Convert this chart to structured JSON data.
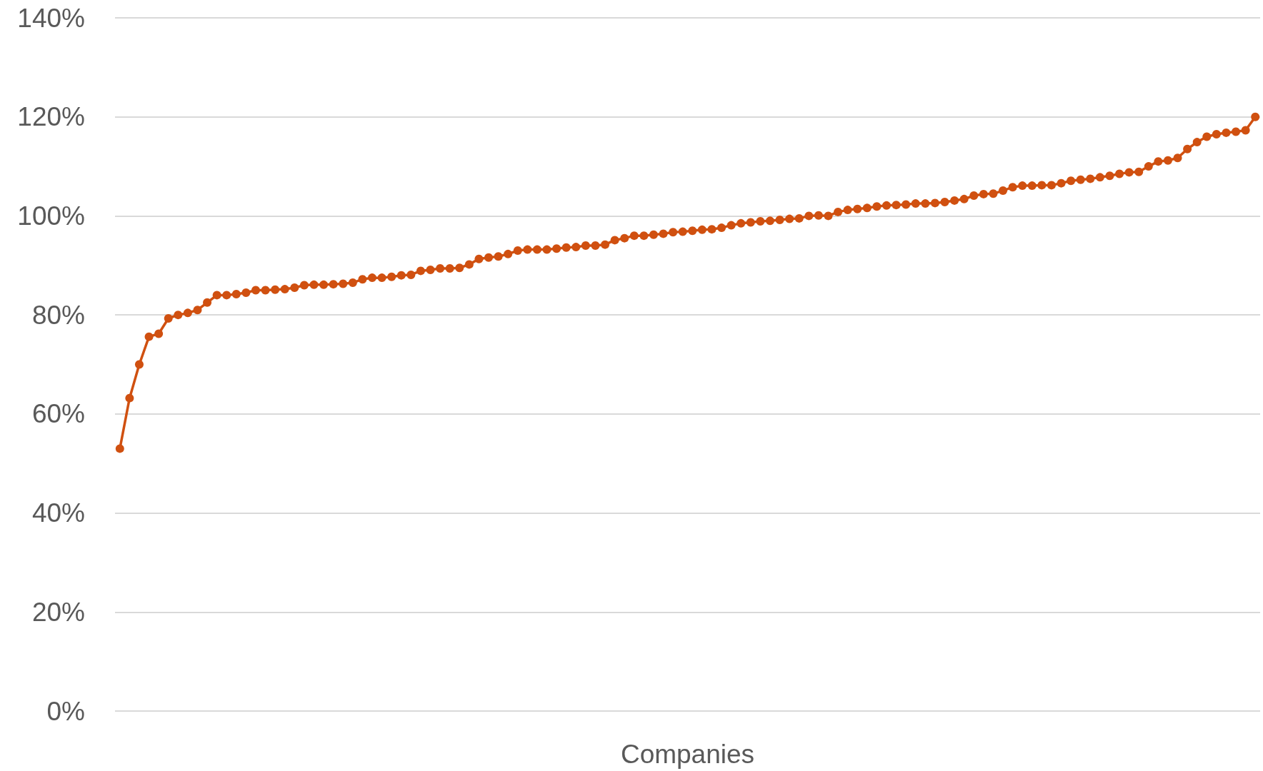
{
  "chart_data": {
    "type": "line",
    "xlabel": "Companies",
    "categories": [
      null,
      null,
      null,
      null,
      null,
      null,
      null,
      null,
      null,
      null,
      null,
      null,
      null,
      null,
      null,
      null,
      null,
      null,
      null,
      null,
      null,
      null,
      null,
      null,
      null,
      null,
      null,
      null,
      null,
      null,
      null,
      null,
      null,
      null,
      null,
      null,
      null,
      null,
      null,
      null,
      null,
      null,
      null,
      null,
      null,
      null,
      null,
      null,
      null,
      null,
      null,
      null,
      null,
      null,
      null,
      null,
      null,
      null,
      null,
      null,
      null,
      null,
      null,
      null,
      null,
      null,
      null,
      null,
      null,
      null,
      null,
      null,
      null,
      null,
      null,
      null,
      null,
      null,
      null,
      null,
      null,
      null,
      null,
      null,
      null,
      null,
      null,
      null,
      null,
      null,
      null,
      null,
      null,
      null,
      null,
      null,
      null,
      null,
      null,
      null,
      null,
      null,
      null,
      null,
      null,
      null,
      null,
      null,
      null,
      null,
      null,
      null,
      null,
      null,
      null,
      null,
      null,
      null
    ],
    "series": [
      {
        "color": "#d05010",
        "values": [
          53,
          63.2,
          70,
          75.6,
          76.2,
          79.3,
          80,
          80.4,
          81,
          82.5,
          84,
          84,
          84.2,
          84.5,
          85,
          85,
          85.1,
          85.2,
          85.5,
          86,
          86.1,
          86.1,
          86.2,
          86.3,
          86.5,
          87.2,
          87.5,
          87.5,
          87.7,
          88,
          88.1,
          88.9,
          89.1,
          89.4,
          89.4,
          89.5,
          90.2,
          91.3,
          91.6,
          91.8,
          92.3,
          93,
          93.2,
          93.2,
          93.2,
          93.4,
          93.6,
          93.7,
          94,
          94,
          94.2,
          95.1,
          95.5,
          96,
          96,
          96.2,
          96.4,
          96.7,
          96.8,
          97,
          97.2,
          97.3,
          97.6,
          98.1,
          98.5,
          98.7,
          98.9,
          99,
          99.2,
          99.4,
          99.5,
          100,
          100.1,
          100,
          100.8,
          101.2,
          101.4,
          101.6,
          101.9,
          102.1,
          102.2,
          102.3,
          102.5,
          102.5,
          102.6,
          102.8,
          103.1,
          103.4,
          104.1,
          104.4,
          104.5,
          105.1,
          105.8,
          106.1,
          106.1,
          106.2,
          106.2,
          106.6,
          107.1,
          107.3,
          107.5,
          107.8,
          108.1,
          108.5,
          108.8,
          108.9,
          110,
          111,
          111.2,
          111.7,
          113.5,
          114.9,
          116,
          116.5,
          116.8,
          117,
          117.3,
          120
        ]
      }
    ],
    "ylim": [
      0,
      140
    ],
    "yticks": [
      {
        "value": 0,
        "label": "0%"
      },
      {
        "value": 20,
        "label": "20%"
      },
      {
        "value": 40,
        "label": "40%"
      },
      {
        "value": 60,
        "label": "60%"
      },
      {
        "value": 80,
        "label": "80%"
      },
      {
        "value": 100,
        "label": "100%"
      },
      {
        "value": 120,
        "label": "120%"
      },
      {
        "value": 140,
        "label": "140%"
      }
    ],
    "grid": "y",
    "marker": "circle",
    "line_style": "solid"
  }
}
